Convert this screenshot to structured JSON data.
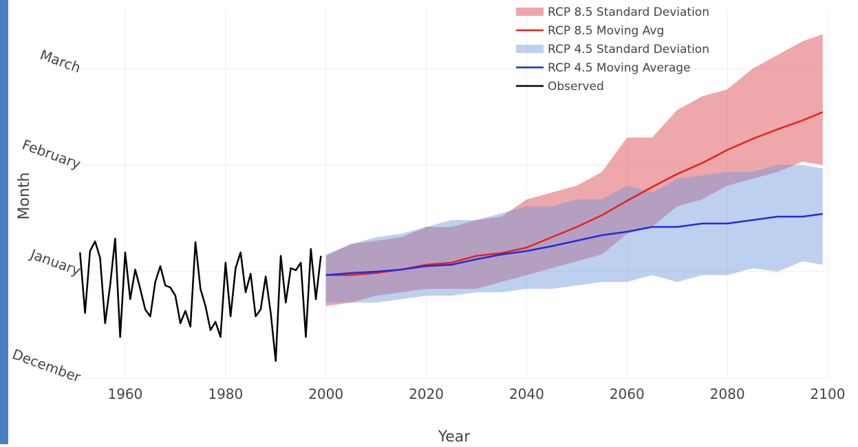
{
  "chart_data": {
    "type": "line",
    "x_label": "Year",
    "y_label": "Month",
    "xlim": [
      1950,
      2100
    ],
    "xticks": [
      1960,
      1980,
      2000,
      2020,
      2040,
      2060,
      2080,
      2100
    ],
    "ylim": [
      0,
      107
    ],
    "yticks": [
      {
        "value": 0,
        "label": "December"
      },
      {
        "value": 31,
        "label": "January"
      },
      {
        "value": 62,
        "label": "February"
      },
      {
        "value": 90,
        "label": "March"
      }
    ],
    "grid": true,
    "legend": "top-right",
    "series": [
      {
        "name": "RCP 8.5 Standard Deviation",
        "type": "band",
        "color": "rgba(222,80,86,0.5)",
        "x": [
          2000,
          2005,
          2010,
          2015,
          2020,
          2025,
          2030,
          2035,
          2040,
          2045,
          2050,
          2055,
          2060,
          2065,
          2070,
          2075,
          2080,
          2085,
          2090,
          2095,
          2099
        ],
        "high": [
          35.6,
          39,
          40,
          41,
          44,
          44,
          46,
          47,
          52,
          54,
          56,
          60,
          70,
          70,
          78,
          82,
          84,
          90,
          94,
          98,
          100
        ],
        "low": [
          21,
          22,
          24,
          25,
          26,
          26,
          26,
          28,
          30,
          32,
          34,
          36,
          42,
          44,
          50,
          52,
          56,
          58,
          60,
          63,
          62
        ]
      },
      {
        "name": "RCP 8.5 Moving Avg",
        "type": "line",
        "color": "#e8201c",
        "x": [
          2000,
          2005,
          2010,
          2015,
          2020,
          2025,
          2030,
          2035,
          2040,
          2045,
          2050,
          2055,
          2060,
          2065,
          2070,
          2075,
          2080,
          2085,
          2090,
          2095,
          2099
        ],
        "values": [
          30,
          30,
          30.6,
          31.6,
          33,
          33.6,
          35.6,
          36.4,
          38,
          41,
          44,
          47.4,
          51.6,
          55.6,
          59.4,
          62.6,
          66.4,
          69.6,
          72.4,
          75,
          77.4
        ]
      },
      {
        "name": "RCP 4.5 Standard Deviation",
        "type": "band",
        "color": "rgba(110,150,220,0.45)",
        "x": [
          2000,
          2005,
          2010,
          2015,
          2020,
          2025,
          2030,
          2035,
          2040,
          2045,
          2050,
          2055,
          2060,
          2065,
          2070,
          2075,
          2080,
          2085,
          2090,
          2095,
          2099
        ],
        "high": [
          36,
          39,
          41,
          42,
          44,
          46,
          46,
          48,
          50,
          50,
          52,
          52,
          56,
          54,
          58,
          59,
          60,
          60,
          62,
          62,
          61
        ],
        "low": [
          22,
          22,
          22,
          23,
          24,
          24,
          25,
          25,
          26,
          26,
          27,
          28,
          28,
          30,
          28,
          30,
          30,
          32,
          31,
          34,
          33
        ]
      },
      {
        "name": "RCP 4.5 Moving Average",
        "type": "line",
        "color": "#1f2be0",
        "x": [
          2000,
          2005,
          2010,
          2015,
          2020,
          2025,
          2030,
          2035,
          2040,
          2045,
          2050,
          2055,
          2060,
          2065,
          2070,
          2075,
          2080,
          2085,
          2090,
          2095,
          2099
        ],
        "values": [
          30,
          30.6,
          31,
          31.6,
          32.6,
          33,
          34.6,
          36,
          37,
          38.4,
          40,
          41.6,
          42.6,
          44,
          44,
          45,
          45,
          46,
          47,
          47,
          47.8
        ]
      },
      {
        "name": "Observed",
        "type": "line",
        "color": "#000000",
        "x": [
          1951,
          1952,
          1953,
          1954,
          1955,
          1956,
          1957,
          1958,
          1959,
          1960,
          1961,
          1962,
          1963,
          1964,
          1965,
          1966,
          1967,
          1968,
          1969,
          1970,
          1971,
          1972,
          1973,
          1974,
          1975,
          1976,
          1977,
          1978,
          1979,
          1980,
          1981,
          1982,
          1983,
          1984,
          1985,
          1986,
          1987,
          1988,
          1989,
          1990,
          1991,
          1992,
          1993,
          1994,
          1995,
          1996,
          1997,
          1998,
          1999
        ],
        "values": [
          36.6,
          19,
          37,
          39.8,
          35,
          16,
          27,
          40.6,
          12,
          36.6,
          23,
          31.6,
          26,
          20,
          18,
          28,
          32.6,
          27,
          26.4,
          24,
          16,
          19.6,
          15,
          39.6,
          26,
          21,
          14,
          16.4,
          12,
          33.6,
          18,
          32,
          36.6,
          25,
          30.4,
          18,
          20,
          29.6,
          19,
          5,
          35.6,
          22,
          32,
          31.4,
          33.6,
          12,
          37.6,
          23,
          35.6
        ]
      }
    ]
  }
}
